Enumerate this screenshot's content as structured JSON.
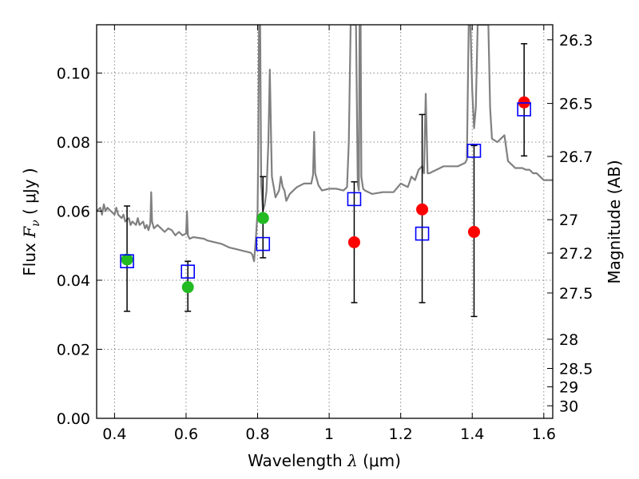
{
  "chart_data": {
    "type": "scatter",
    "title": "",
    "xlabel": {
      "prefix": "Wavelength  ",
      "var": "λ",
      "unit": " (μm)"
    },
    "ylabel": {
      "prefix": "Flux  ",
      "var": "F",
      "sub": "ν",
      "unit": "  ( μJy )"
    },
    "y2label": "Magnitude (AB)",
    "xlim": [
      0.35,
      1.625
    ],
    "ylim": [
      0.0,
      0.114
    ],
    "grid": true,
    "x_ticks": [
      {
        "value": 0.4,
        "label": "0.4"
      },
      {
        "value": 0.6,
        "label": "0.6"
      },
      {
        "value": 0.8,
        "label": "0.8"
      },
      {
        "value": 1.0,
        "label": "1"
      },
      {
        "value": 1.2,
        "label": "1.2"
      },
      {
        "value": 1.4,
        "label": "1.4"
      },
      {
        "value": 1.6,
        "label": "1.6"
      }
    ],
    "y_ticks": [
      {
        "value": 0.0,
        "label": "0.00"
      },
      {
        "value": 0.02,
        "label": "0.02"
      },
      {
        "value": 0.04,
        "label": "0.04"
      },
      {
        "value": 0.06,
        "label": "0.06"
      },
      {
        "value": 0.08,
        "label": "0.08"
      },
      {
        "value": 0.1,
        "label": "0.10"
      }
    ],
    "y2_ticks": [
      {
        "value": 26.3,
        "label": "26.3"
      },
      {
        "value": 26.5,
        "label": "26.5"
      },
      {
        "value": 26.7,
        "label": "26.7"
      },
      {
        "value": 27.0,
        "label": "27"
      },
      {
        "value": 27.2,
        "label": "27.2"
      },
      {
        "value": 27.5,
        "label": "27.5"
      },
      {
        "value": 28.0,
        "label": "28"
      },
      {
        "value": 28.5,
        "label": "28.5"
      },
      {
        "value": 29.0,
        "label": "29"
      },
      {
        "value": 30.0,
        "label": "30"
      }
    ],
    "colors": {
      "model": "#808080",
      "green": "#22bb22",
      "red": "#ff0000",
      "model_box": "#0000ff",
      "errorbar": "#000000",
      "grid": "#888888"
    },
    "series": [
      {
        "name": "model spectrum",
        "kind": "line",
        "points": [
          [
            0.35,
            0.06
          ],
          [
            0.36,
            0.061
          ],
          [
            0.365,
            0.059
          ],
          [
            0.37,
            0.062
          ],
          [
            0.375,
            0.06
          ],
          [
            0.38,
            0.061
          ],
          [
            0.39,
            0.06
          ],
          [
            0.4,
            0.059
          ],
          [
            0.405,
            0.061
          ],
          [
            0.41,
            0.059
          ],
          [
            0.42,
            0.058
          ],
          [
            0.425,
            0.059
          ],
          [
            0.43,
            0.057
          ],
          [
            0.44,
            0.058
          ],
          [
            0.445,
            0.056
          ],
          [
            0.45,
            0.057
          ],
          [
            0.46,
            0.056
          ],
          [
            0.465,
            0.058
          ],
          [
            0.47,
            0.056
          ],
          [
            0.48,
            0.057
          ],
          [
            0.485,
            0.055
          ],
          [
            0.49,
            0.056
          ],
          [
            0.495,
            0.0545
          ],
          [
            0.5,
            0.0565
          ],
          [
            0.5025,
            0.0655
          ],
          [
            0.505,
            0.057
          ],
          [
            0.51,
            0.055
          ],
          [
            0.52,
            0.056
          ],
          [
            0.53,
            0.055
          ],
          [
            0.54,
            0.054
          ],
          [
            0.55,
            0.055
          ],
          [
            0.56,
            0.0545
          ],
          [
            0.57,
            0.053
          ],
          [
            0.58,
            0.054
          ],
          [
            0.59,
            0.053
          ],
          [
            0.6,
            0.0535
          ],
          [
            0.6025,
            0.06
          ],
          [
            0.605,
            0.053
          ],
          [
            0.61,
            0.052
          ],
          [
            0.62,
            0.0525
          ],
          [
            0.65,
            0.052
          ],
          [
            0.66,
            0.0515
          ],
          [
            0.68,
            0.051
          ],
          [
            0.7,
            0.0505
          ],
          [
            0.72,
            0.0495
          ],
          [
            0.74,
            0.049
          ],
          [
            0.76,
            0.0485
          ],
          [
            0.78,
            0.048
          ],
          [
            0.785,
            0.0475
          ],
          [
            0.79,
            0.0455
          ],
          [
            0.795,
            0.052
          ],
          [
            0.8,
            0.06
          ],
          [
            0.802,
            0.08
          ],
          [
            0.804,
            0.114
          ],
          [
            0.807,
            0.114
          ],
          [
            0.81,
            0.068
          ],
          [
            0.815,
            0.06
          ],
          [
            0.82,
            0.062
          ],
          [
            0.825,
            0.066
          ],
          [
            0.83,
            0.08
          ],
          [
            0.834,
            0.101
          ],
          [
            0.838,
            0.08
          ],
          [
            0.84,
            0.07
          ],
          [
            0.845,
            0.067
          ],
          [
            0.85,
            0.064
          ],
          [
            0.86,
            0.066
          ],
          [
            0.865,
            0.07
          ],
          [
            0.87,
            0.067
          ],
          [
            0.875,
            0.066
          ],
          [
            0.88,
            0.063
          ],
          [
            0.885,
            0.064
          ],
          [
            0.89,
            0.065
          ],
          [
            0.9,
            0.066
          ],
          [
            0.91,
            0.067
          ],
          [
            0.93,
            0.068
          ],
          [
            0.95,
            0.068
          ],
          [
            0.955,
            0.0705
          ],
          [
            0.958,
            0.083
          ],
          [
            0.961,
            0.071
          ],
          [
            0.97,
            0.0675
          ],
          [
            0.98,
            0.066
          ],
          [
            1.0,
            0.0665
          ],
          [
            1.02,
            0.0665
          ],
          [
            1.04,
            0.066
          ],
          [
            1.05,
            0.067
          ],
          [
            1.055,
            0.08
          ],
          [
            1.06,
            0.114
          ],
          [
            1.075,
            0.114
          ],
          [
            1.08,
            0.068
          ],
          [
            1.083,
            0.066
          ],
          [
            1.085,
            0.114
          ],
          [
            1.088,
            0.114
          ],
          [
            1.09,
            0.07
          ],
          [
            1.095,
            0.0665
          ],
          [
            1.1,
            0.066
          ],
          [
            1.12,
            0.065
          ],
          [
            1.15,
            0.0655
          ],
          [
            1.18,
            0.0655
          ],
          [
            1.2,
            0.068
          ],
          [
            1.22,
            0.067
          ],
          [
            1.23,
            0.07
          ],
          [
            1.24,
            0.069
          ],
          [
            1.25,
            0.072
          ],
          [
            1.26,
            0.073
          ],
          [
            1.265,
            0.071
          ],
          [
            1.27,
            0.094
          ],
          [
            1.275,
            0.071
          ],
          [
            1.28,
            0.071
          ],
          [
            1.3,
            0.072
          ],
          [
            1.32,
            0.073
          ],
          [
            1.34,
            0.073
          ],
          [
            1.36,
            0.073
          ],
          [
            1.38,
            0.074
          ],
          [
            1.385,
            0.075
          ],
          [
            1.39,
            0.114
          ],
          [
            1.395,
            0.114
          ],
          [
            1.4,
            0.095
          ],
          [
            1.405,
            0.084
          ],
          [
            1.41,
            0.09
          ],
          [
            1.415,
            0.114
          ],
          [
            1.445,
            0.114
          ],
          [
            1.45,
            0.09
          ],
          [
            1.455,
            0.081
          ],
          [
            1.47,
            0.08
          ],
          [
            1.48,
            0.081
          ],
          [
            1.49,
            0.082
          ],
          [
            1.5,
            0.0745
          ],
          [
            1.51,
            0.0735
          ],
          [
            1.52,
            0.0725
          ],
          [
            1.53,
            0.0725
          ],
          [
            1.54,
            0.0725
          ],
          [
            1.55,
            0.072
          ],
          [
            1.56,
            0.072
          ],
          [
            1.57,
            0.071
          ],
          [
            1.58,
            0.071
          ],
          [
            1.59,
            0.07
          ],
          [
            1.6,
            0.069
          ],
          [
            1.61,
            0.069
          ],
          [
            1.625,
            0.069
          ]
        ]
      },
      {
        "name": "green observations",
        "kind": "points",
        "marker": "circle",
        "color": "green",
        "points": [
          {
            "x": 0.435,
            "y": 0.046
          },
          {
            "x": 0.605,
            "y": 0.038
          },
          {
            "x": 0.815,
            "y": 0.058
          }
        ]
      },
      {
        "name": "red observations",
        "kind": "points",
        "marker": "circle",
        "color": "red",
        "points": [
          {
            "x": 1.07,
            "y": 0.051
          },
          {
            "x": 1.26,
            "y": 0.0605
          },
          {
            "x": 1.405,
            "y": 0.054
          },
          {
            "x": 1.545,
            "y": 0.0915
          }
        ]
      },
      {
        "name": "model synthetic photometry",
        "kind": "points",
        "marker": "square",
        "color": "model_box",
        "points": [
          {
            "x": 0.435,
            "y": 0.0455
          },
          {
            "x": 0.605,
            "y": 0.0425
          },
          {
            "x": 0.815,
            "y": 0.0505
          },
          {
            "x": 1.07,
            "y": 0.0635
          },
          {
            "x": 1.26,
            "y": 0.0535
          },
          {
            "x": 1.405,
            "y": 0.0775
          },
          {
            "x": 1.545,
            "y": 0.0895
          }
        ]
      },
      {
        "name": "error bars",
        "kind": "errorbars",
        "points": [
          {
            "x": 0.435,
            "low": 0.031,
            "high": 0.0615
          },
          {
            "x": 0.605,
            "low": 0.031,
            "high": 0.0455
          },
          {
            "x": 0.815,
            "low": 0.0465,
            "high": 0.07
          },
          {
            "x": 1.07,
            "low": 0.0335,
            "high": 0.0685
          },
          {
            "x": 1.26,
            "low": 0.0335,
            "high": 0.088
          },
          {
            "x": 1.405,
            "low": 0.0295,
            "high": 0.079
          },
          {
            "x": 1.545,
            "low": 0.076,
            "high": 0.1085
          }
        ]
      }
    ]
  }
}
